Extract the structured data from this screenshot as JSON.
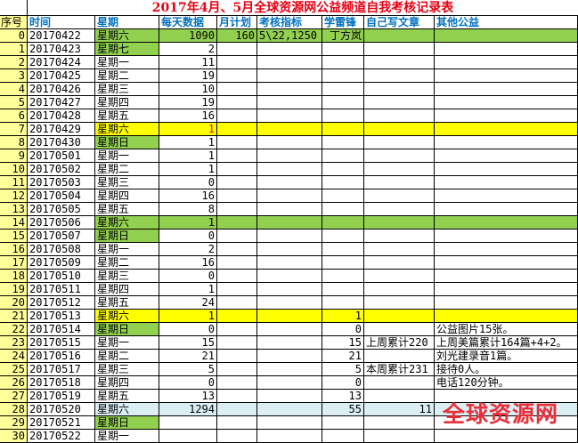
{
  "title": "2017年4月、5月全球资源网公益频道自我考核记录表",
  "headers": [
    "序号",
    "时间",
    "星期",
    "每天数据",
    "月计划",
    "考核指标",
    "学雷锋",
    "自己写文章",
    "其他公益"
  ],
  "colors": {
    "green": "#92d050",
    "yellow": "#ffff00",
    "light_blue": "#daeef3",
    "index_bg": "#ffff99",
    "header_text": "#0070c0",
    "title": "#e60012"
  },
  "rows": [
    {
      "cells": [
        "0",
        "20170422",
        "星期六",
        "1090",
        "160",
        "5\\22,1250",
        "丁方岚",
        "",
        ""
      ],
      "fill": "green",
      "week_green": true
    },
    {
      "cells": [
        "1",
        "20170423",
        "星期七",
        "2",
        "",
        "",
        "",
        "",
        ""
      ],
      "week_green": true
    },
    {
      "cells": [
        "2",
        "20170424",
        "星期一",
        "11",
        "",
        "",
        "",
        "",
        ""
      ]
    },
    {
      "cells": [
        "3",
        "20170425",
        "星期二",
        "19",
        "",
        "",
        "",
        "",
        ""
      ]
    },
    {
      "cells": [
        "4",
        "20170426",
        "星期三",
        "10",
        "",
        "",
        "",
        "",
        ""
      ]
    },
    {
      "cells": [
        "5",
        "20170427",
        "星期四",
        "19",
        "",
        "",
        "",
        "",
        ""
      ]
    },
    {
      "cells": [
        "6",
        "20170428",
        "星期五",
        "16",
        "",
        "",
        "",
        "",
        ""
      ]
    },
    {
      "cells": [
        "7",
        "20170429",
        "星期六",
        "1",
        "",
        "",
        "",
        "",
        ""
      ],
      "fill": "yellow",
      "week_green": true,
      "red_value": true
    },
    {
      "cells": [
        "8",
        "20170430",
        "星期日",
        "1",
        "",
        "",
        "",
        "",
        ""
      ],
      "week_green": true
    },
    {
      "cells": [
        "9",
        "20170501",
        "星期一",
        "1",
        "",
        "",
        "",
        "",
        ""
      ]
    },
    {
      "cells": [
        "10",
        "20170502",
        "星期二",
        "1",
        "",
        "",
        "",
        "",
        ""
      ]
    },
    {
      "cells": [
        "11",
        "20170503",
        "星期三",
        "0",
        "",
        "",
        "",
        "",
        ""
      ]
    },
    {
      "cells": [
        "12",
        "20170504",
        "星期四",
        "16",
        "",
        "",
        "",
        "",
        ""
      ]
    },
    {
      "cells": [
        "13",
        "20170505",
        "星期五",
        "8",
        "",
        "",
        "",
        "",
        ""
      ]
    },
    {
      "cells": [
        "14",
        "20170506",
        "星期六",
        "1",
        "",
        "",
        "",
        "",
        ""
      ],
      "fill": "green",
      "week_green": true
    },
    {
      "cells": [
        "15",
        "20170507",
        "星期日",
        "0",
        "",
        "",
        "",
        "",
        ""
      ],
      "week_green": true
    },
    {
      "cells": [
        "16",
        "20170508",
        "星期一",
        "2",
        "",
        "",
        "",
        "",
        ""
      ]
    },
    {
      "cells": [
        "17",
        "20170509",
        "星期二",
        "16",
        "",
        "",
        "",
        "",
        ""
      ]
    },
    {
      "cells": [
        "18",
        "20170510",
        "星期三",
        "0",
        "",
        "",
        "",
        "",
        ""
      ]
    },
    {
      "cells": [
        "19",
        "20170511",
        "星期四",
        "1",
        "",
        "",
        "",
        "",
        ""
      ]
    },
    {
      "cells": [
        "20",
        "20170512",
        "星期五",
        "24",
        "",
        "",
        "",
        "",
        ""
      ]
    },
    {
      "cells": [
        "21",
        "20170513",
        "星期六",
        "1",
        "",
        "",
        "1",
        "",
        ""
      ],
      "fill": "yellow",
      "week_green": true
    },
    {
      "cells": [
        "22",
        "20170514",
        "星期日",
        "0",
        "",
        "",
        "0",
        "",
        "公益图片15张。"
      ],
      "week_green": true
    },
    {
      "cells": [
        "23",
        "20170515",
        "星期一",
        "15",
        "",
        "",
        "15",
        "上周累计220",
        "上周美篇累计164篇+4+2。"
      ]
    },
    {
      "cells": [
        "24",
        "20170516",
        "星期二",
        "21",
        "",
        "",
        "21",
        "",
        "刘光建录音1篇。"
      ]
    },
    {
      "cells": [
        "25",
        "20170517",
        "星期三",
        "5",
        "",
        "",
        "5",
        "本周累计231",
        "接待0人。"
      ]
    },
    {
      "cells": [
        "26",
        "20170518",
        "星期四",
        "0",
        "",
        "",
        "0",
        "",
        "电话120分钟。"
      ]
    },
    {
      "cells": [
        "27",
        "20170519",
        "星期五",
        "13",
        "",
        "",
        "13",
        "",
        ""
      ]
    },
    {
      "cells": [
        "28",
        "20170520",
        "星期六",
        "1294",
        "",
        "",
        "55",
        "11",
        ""
      ],
      "fill": "blue",
      "week_green": true
    },
    {
      "cells": [
        "29",
        "20170521",
        "星期日",
        "",
        "",
        "",
        "",
        "",
        ""
      ],
      "week_green": true
    },
    {
      "cells": [
        "30",
        "20170522",
        "星期一",
        "",
        "",
        "",
        "",
        "",
        ""
      ]
    }
  ],
  "watermark": "全球资源网"
}
